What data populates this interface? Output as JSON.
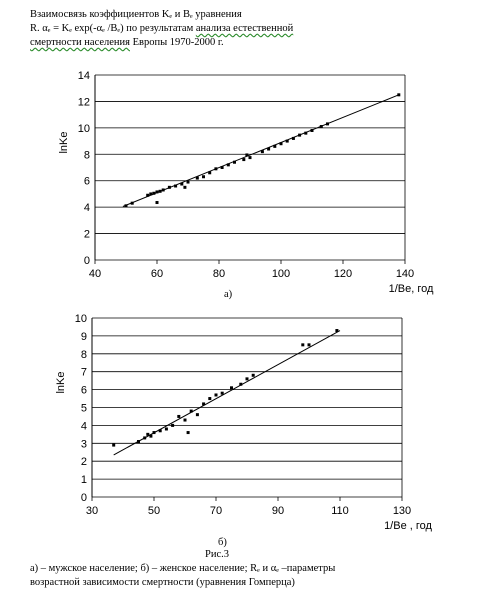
{
  "header": {
    "line1": "Взаимосвязь коэффициентов Kₑ и Bₑ уравнения",
    "line2_pre": "R. αₑ = Kₑ exp(-αₑ /Bₑ) по результатам ",
    "line2_ul": "анализа естественной",
    "line3_ul": "смертности населения",
    "line3_post": " Европы 1970-2000 г."
  },
  "chart_data": [
    {
      "type": "scatter",
      "ylabel": "lnKe",
      "xlabel": "1/Be, год",
      "xlim": [
        40,
        140
      ],
      "ylim": [
        0,
        14
      ],
      "xticks": [
        "40",
        "60",
        "80",
        "100",
        "120",
        "140"
      ],
      "yticks": [
        "0",
        "2",
        "4",
        "6",
        "8",
        "10",
        "12",
        "14"
      ],
      "grid": "horizontal",
      "trendline": [
        [
          49,
          4.05
        ],
        [
          138,
          12.5
        ]
      ],
      "points": [
        [
          50,
          4.1
        ],
        [
          52,
          4.3
        ],
        [
          57,
          4.9
        ],
        [
          58,
          5.0
        ],
        [
          59,
          5.05
        ],
        [
          60,
          5.15
        ],
        [
          60,
          4.35
        ],
        [
          61,
          5.2
        ],
        [
          62,
          5.3
        ],
        [
          64,
          5.5
        ],
        [
          66,
          5.6
        ],
        [
          68,
          5.75
        ],
        [
          69,
          5.5
        ],
        [
          70,
          5.9
        ],
        [
          73,
          6.2
        ],
        [
          75,
          6.3
        ],
        [
          77,
          6.6
        ],
        [
          79,
          6.9
        ],
        [
          81,
          7.0
        ],
        [
          83,
          7.2
        ],
        [
          85,
          7.4
        ],
        [
          88,
          7.6
        ],
        [
          89,
          7.95
        ],
        [
          90,
          7.75
        ],
        [
          94,
          8.2
        ],
        [
          96,
          8.4
        ],
        [
          98,
          8.6
        ],
        [
          100,
          8.8
        ],
        [
          102,
          9.0
        ],
        [
          104,
          9.2
        ],
        [
          106,
          9.45
        ],
        [
          108,
          9.6
        ],
        [
          110,
          9.8
        ],
        [
          113,
          10.1
        ],
        [
          115,
          10.3
        ],
        [
          138,
          12.5
        ]
      ],
      "label": "а)"
    },
    {
      "type": "scatter",
      "ylabel": "lnKe",
      "xlabel": "1/Be , год",
      "xlim": [
        30,
        130
      ],
      "ylim": [
        0,
        10
      ],
      "xticks": [
        "30",
        "50",
        "70",
        "90",
        "110",
        "130"
      ],
      "yticks": [
        "0",
        "1",
        "2",
        "3",
        "4",
        "5",
        "6",
        "7",
        "8",
        "9",
        "10"
      ],
      "grid": "horizontal",
      "trendline": [
        [
          37,
          2.35
        ],
        [
          110,
          9.3
        ]
      ],
      "points": [
        [
          37,
          2.9
        ],
        [
          45,
          3.1
        ],
        [
          47,
          3.3
        ],
        [
          48,
          3.5
        ],
        [
          49,
          3.4
        ],
        [
          50,
          3.6
        ],
        [
          52,
          3.7
        ],
        [
          54,
          3.8
        ],
        [
          56,
          4.0
        ],
        [
          58,
          4.5
        ],
        [
          60,
          4.3
        ],
        [
          61,
          3.6
        ],
        [
          62,
          4.8
        ],
        [
          64,
          4.6
        ],
        [
          66,
          5.2
        ],
        [
          68,
          5.5
        ],
        [
          70,
          5.7
        ],
        [
          72,
          5.8
        ],
        [
          75,
          6.1
        ],
        [
          78,
          6.3
        ],
        [
          80,
          6.6
        ],
        [
          82,
          6.8
        ],
        [
          98,
          8.5
        ],
        [
          100,
          8.5
        ],
        [
          109,
          9.3
        ]
      ],
      "label": "б)"
    }
  ],
  "figure_caption": "Рис.3",
  "notes": {
    "line1": "а) – мужское население; б) – женское население; Rₑ и αₑ –параметры",
    "line2": "возрастной зависимости смертности (уравнения Гомперца)"
  }
}
